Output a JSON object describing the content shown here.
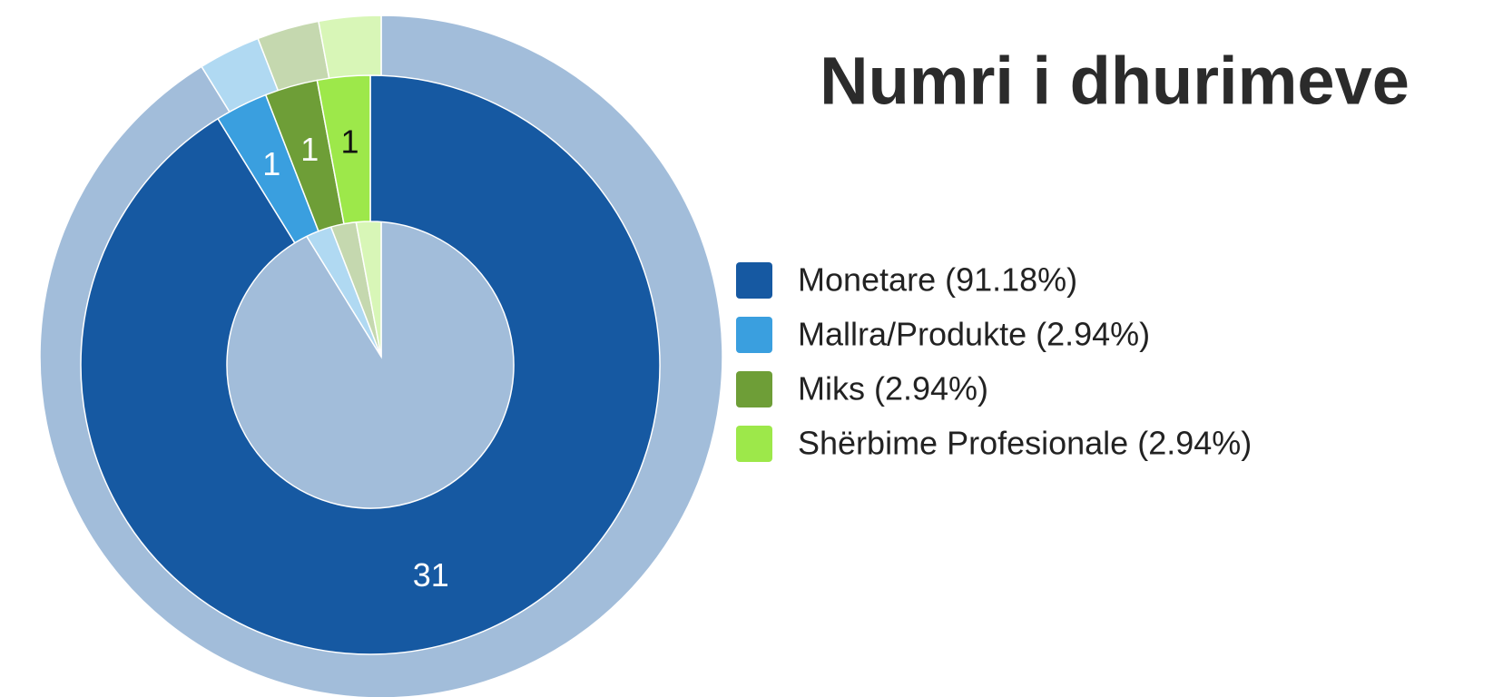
{
  "chart_data": {
    "type": "donut",
    "title": "Numri i dhurimeve",
    "categories": [
      "Monetare (91.18%)",
      "Mallra/Produkte (2.94%)",
      "Miks (2.94%)",
      "Shërbime Profesionale (2.94%)"
    ],
    "values": [
      31,
      1,
      1,
      1
    ],
    "colors": [
      "#1659a2",
      "#3a9fdf",
      "#6e9e37",
      "#9de84a"
    ],
    "legend": "right"
  }
}
